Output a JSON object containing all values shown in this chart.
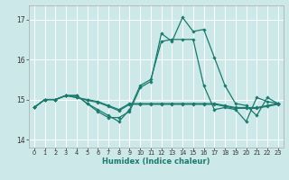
{
  "xlabel": "Humidex (Indice chaleur)",
  "background_color": "#cce8e8",
  "grid_color": "#ffffff",
  "line_color": "#1a7a6e",
  "xlim": [
    -0.5,
    23.5
  ],
  "ylim": [
    13.8,
    17.35
  ],
  "yticks": [
    14,
    15,
    16,
    17
  ],
  "xticks": [
    0,
    1,
    2,
    3,
    4,
    5,
    6,
    7,
    8,
    9,
    10,
    11,
    12,
    13,
    14,
    15,
    16,
    17,
    18,
    19,
    20,
    21,
    22,
    23
  ],
  "series": [
    [
      14.8,
      15.0,
      15.0,
      15.1,
      15.1,
      14.9,
      14.7,
      14.55,
      14.55,
      14.7,
      15.3,
      15.45,
      16.65,
      16.45,
      17.05,
      16.7,
      16.75,
      16.05,
      15.35,
      14.9,
      14.85,
      14.6,
      15.05,
      14.9
    ],
    [
      14.8,
      15.0,
      15.0,
      15.1,
      15.05,
      15.0,
      14.95,
      14.85,
      14.75,
      14.9,
      14.9,
      14.9,
      14.9,
      14.9,
      14.9,
      14.9,
      14.9,
      14.9,
      14.85,
      14.8,
      14.8,
      14.8,
      14.85,
      14.9
    ],
    [
      14.8,
      15.0,
      15.0,
      15.1,
      15.05,
      14.98,
      14.93,
      14.83,
      14.72,
      14.88,
      14.88,
      14.88,
      14.88,
      14.88,
      14.88,
      14.88,
      14.88,
      14.88,
      14.83,
      14.78,
      14.78,
      14.78,
      14.83,
      14.88
    ],
    [
      14.8,
      15.0,
      15.0,
      15.1,
      15.1,
      14.9,
      14.75,
      14.6,
      14.45,
      14.75,
      15.35,
      15.5,
      16.45,
      16.5,
      16.5,
      16.5,
      15.35,
      14.75,
      14.8,
      14.75,
      14.45,
      15.05,
      14.95,
      14.9
    ]
  ]
}
